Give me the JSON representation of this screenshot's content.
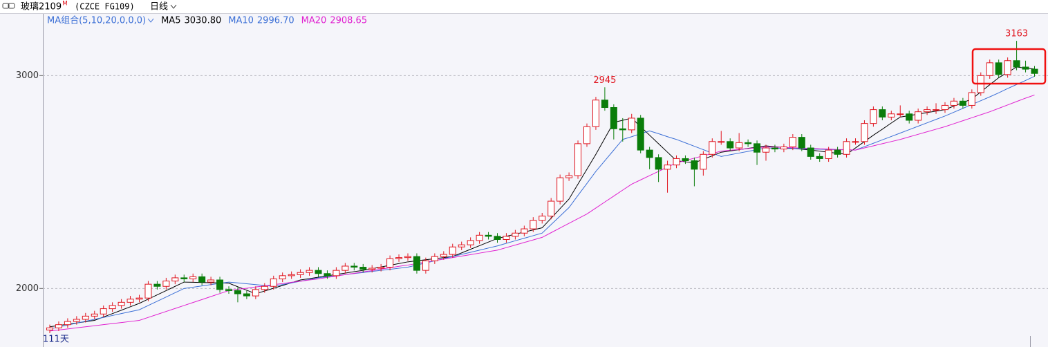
{
  "chart_data": {
    "type": "candlestick",
    "title": "玻璃2109",
    "title_mark": "M",
    "subtitle": "(CZCE FG109)",
    "period": "日线",
    "indicator": "MA组合(5,10,20,0,0,0)",
    "day_count_label": "111天",
    "up_color": "#e0141e",
    "down_color": "#0a7d0a",
    "ylim": [
      1790,
      3290
    ],
    "yticks": [
      2000,
      3000
    ],
    "grid": true,
    "open": [
      1805,
      1815,
      1830,
      1845,
      1855,
      1870,
      1880,
      1905,
      1920,
      1935,
      1950,
      1955,
      2020,
      2010,
      2035,
      2050,
      2045,
      2055,
      2030,
      2040,
      1995,
      1990,
      1975,
      1965,
      1995,
      2010,
      2045,
      2060,
      2065,
      2075,
      2085,
      2070,
      2060,
      2085,
      2105,
      2100,
      2090,
      2095,
      2100,
      2140,
      2145,
      2150,
      2085,
      2130,
      2150,
      2160,
      2195,
      2205,
      2225,
      2250,
      2245,
      2230,
      2245,
      2260,
      2280,
      2320,
      2340,
      2410,
      2520,
      2530,
      2680,
      2760,
      2885,
      2850,
      2750,
      2745,
      2800,
      2650,
      2615,
      2560,
      2580,
      2610,
      2600,
      2560,
      2630,
      2690,
      2690,
      2660,
      2685,
      2680,
      2640,
      2660,
      2655,
      2665,
      2710,
      2660,
      2620,
      2610,
      2650,
      2630,
      2690,
      2690,
      2775,
      2840,
      2805,
      2820,
      2820,
      2790,
      2830,
      2840,
      2840,
      2860,
      2880,
      2860,
      2920,
      3000,
      3060,
      3005,
      3070,
      3040,
      3030
    ],
    "high": [
      1830,
      1845,
      1860,
      1870,
      1885,
      1895,
      1920,
      1935,
      1950,
      1965,
      1970,
      2035,
      2035,
      2050,
      2065,
      2065,
      2070,
      2070,
      2055,
      2055,
      2010,
      2005,
      1990,
      2010,
      2025,
      2060,
      2075,
      2080,
      2090,
      2100,
      2100,
      2085,
      2100,
      2120,
      2120,
      2115,
      2110,
      2115,
      2155,
      2160,
      2165,
      2165,
      2145,
      2165,
      2175,
      2210,
      2220,
      2240,
      2265,
      2265,
      2260,
      2260,
      2275,
      2295,
      2335,
      2355,
      2425,
      2535,
      2545,
      2695,
      2775,
      2900,
      2945,
      2865,
      2800,
      2820,
      2815,
      2665,
      2630,
      2600,
      2625,
      2625,
      2615,
      2645,
      2705,
      2740,
      2705,
      2730,
      2700,
      2695,
      2675,
      2675,
      2680,
      2725,
      2725,
      2675,
      2635,
      2665,
      2665,
      2705,
      2705,
      2790,
      2855,
      2855,
      2835,
      2860,
      2835,
      2845,
      2855,
      2870,
      2875,
      2895,
      2895,
      2935,
      3015,
      3075,
      3075,
      3085,
      3163,
      3070,
      3045
    ],
    "low": [
      1790,
      1800,
      1815,
      1830,
      1840,
      1855,
      1865,
      1890,
      1905,
      1920,
      1935,
      1940,
      1995,
      1995,
      2020,
      2030,
      2030,
      2015,
      2015,
      1980,
      1975,
      1935,
      1950,
      1950,
      1980,
      1995,
      2030,
      2045,
      2050,
      2060,
      2055,
      2045,
      2045,
      2070,
      2085,
      2075,
      2075,
      2080,
      2085,
      2125,
      2130,
      2070,
      2070,
      2115,
      2135,
      2145,
      2180,
      2190,
      2210,
      2230,
      2215,
      2215,
      2230,
      2245,
      2265,
      2305,
      2325,
      2395,
      2505,
      2515,
      2665,
      2745,
      2835,
      2700,
      2690,
      2730,
      2635,
      2560,
      2500,
      2450,
      2565,
      2585,
      2480,
      2530,
      2615,
      2675,
      2645,
      2645,
      2665,
      2580,
      2600,
      2640,
      2640,
      2650,
      2645,
      2605,
      2595,
      2595,
      2615,
      2615,
      2675,
      2675,
      2760,
      2790,
      2790,
      2805,
      2775,
      2775,
      2815,
      2820,
      2825,
      2845,
      2845,
      2845,
      2905,
      2985,
      2990,
      2990,
      3025,
      3015,
      2995
    ],
    "close": [
      1815,
      1830,
      1845,
      1855,
      1870,
      1880,
      1905,
      1920,
      1935,
      1950,
      1955,
      2020,
      2010,
      2035,
      2050,
      2045,
      2055,
      2030,
      2040,
      1995,
      1990,
      1975,
      1965,
      1995,
      2010,
      2045,
      2060,
      2065,
      2075,
      2085,
      2070,
      2060,
      2085,
      2105,
      2100,
      2090,
      2095,
      2100,
      2140,
      2145,
      2150,
      2085,
      2130,
      2150,
      2160,
      2195,
      2205,
      2225,
      2250,
      2245,
      2230,
      2245,
      2260,
      2280,
      2320,
      2340,
      2410,
      2520,
      2530,
      2680,
      2760,
      2885,
      2850,
      2750,
      2745,
      2800,
      2650,
      2615,
      2560,
      2580,
      2610,
      2600,
      2560,
      2630,
      2690,
      2690,
      2660,
      2685,
      2680,
      2640,
      2660,
      2655,
      2665,
      2710,
      2660,
      2620,
      2610,
      2650,
      2630,
      2690,
      2690,
      2775,
      2840,
      2805,
      2820,
      2820,
      2790,
      2830,
      2840,
      2840,
      2860,
      2880,
      2860,
      2920,
      3000,
      3060,
      3005,
      3070,
      3040,
      3030,
      3010
    ],
    "series": [
      {
        "name": "MA5",
        "color": "#000000",
        "value_label": "3030.80",
        "values": [
          1820,
          1826,
          1832,
          1838,
          1844,
          1850,
          1866,
          1882,
          1898,
          1914,
          1930,
          1950,
          1970,
          1990,
          2010,
          2030,
          2029,
          2028,
          2027,
          2026,
          2025,
          2008,
          1992,
          1975,
          1988,
          2001,
          2014,
          2027,
          2040,
          2046,
          2053,
          2059,
          2066,
          2072,
          2079,
          2085,
          2093,
          2101,
          2109,
          2117,
          2125,
          2130,
          2135,
          2140,
          2145,
          2150,
          2167,
          2184,
          2201,
          2218,
          2235,
          2245,
          2255,
          2265,
          2275,
          2285,
          2330,
          2375,
          2420,
          2490,
          2560,
          2630,
          2705,
          2780,
          2790,
          2800,
          2760,
          2720,
          2680,
          2640,
          2600,
          2595,
          2590,
          2607,
          2623,
          2640,
          2646,
          2652,
          2658,
          2664,
          2670,
          2666,
          2662,
          2658,
          2654,
          2650,
          2645,
          2640,
          2635,
          2630,
          2660,
          2690,
          2720,
          2748,
          2777,
          2805,
          2812,
          2819,
          2826,
          2833,
          2840,
          2857,
          2873,
          2890,
          2923,
          2957,
          2990,
          3015,
          3040,
          3035,
          3030.8
        ]
      },
      {
        "name": "MA10",
        "color": "#3b6fd6",
        "value_label": "2996.70",
        "values": [
          1810,
          1819,
          1828,
          1837,
          1846,
          1855,
          1864,
          1873,
          1882,
          1891,
          1900,
          1920,
          1940,
          1960,
          1980,
          2000,
          2006,
          2012,
          2018,
          2024,
          2030,
          2026,
          2022,
          2018,
          2014,
          2010,
          2018,
          2026,
          2034,
          2042,
          2050,
          2055,
          2060,
          2065,
          2070,
          2075,
          2080,
          2085,
          2090,
          2095,
          2100,
          2110,
          2120,
          2130,
          2140,
          2150,
          2160,
          2170,
          2180,
          2190,
          2200,
          2212,
          2224,
          2236,
          2248,
          2260,
          2300,
          2340,
          2380,
          2437,
          2493,
          2550,
          2600,
          2650,
          2700,
          2713,
          2727,
          2740,
          2727,
          2713,
          2700,
          2684,
          2668,
          2652,
          2636,
          2620,
          2628,
          2636,
          2644,
          2652,
          2660,
          2659,
          2658,
          2657,
          2656,
          2655,
          2654,
          2653,
          2652,
          2651,
          2650,
          2666,
          2682,
          2698,
          2714,
          2730,
          2746,
          2762,
          2778,
          2794,
          2810,
          2828,
          2846,
          2864,
          2882,
          2900,
          2919,
          2939,
          2958,
          2977,
          2996.7
        ]
      },
      {
        "name": "MA20",
        "color": "#e020d0",
        "value_label": "2908.65",
        "values": [
          1800,
          1805,
          1810,
          1815,
          1820,
          1825,
          1830,
          1835,
          1840,
          1845,
          1850,
          1864,
          1878,
          1892,
          1906,
          1920,
          1934,
          1948,
          1962,
          1976,
          1990,
          1996,
          2001,
          2007,
          2012,
          2018,
          2023,
          2029,
          2034,
          2040,
          2045,
          2052,
          2058,
          2065,
          2071,
          2078,
          2084,
          2091,
          2097,
          2104,
          2110,
          2117,
          2124,
          2131,
          2138,
          2145,
          2152,
          2159,
          2166,
          2173,
          2180,
          2192,
          2204,
          2216,
          2228,
          2240,
          2262,
          2284,
          2306,
          2328,
          2350,
          2378,
          2406,
          2434,
          2462,
          2490,
          2510,
          2530,
          2550,
          2570,
          2590,
          2601,
          2612,
          2623,
          2634,
          2645,
          2649,
          2653,
          2657,
          2661,
          2665,
          2664,
          2662,
          2661,
          2659,
          2658,
          2656,
          2655,
          2653,
          2652,
          2650,
          2660,
          2670,
          2680,
          2690,
          2700,
          2712,
          2724,
          2736,
          2748,
          2760,
          2774,
          2788,
          2802,
          2816,
          2830,
          2846,
          2862,
          2878,
          2894,
          2908.65
        ]
      }
    ]
  }
}
